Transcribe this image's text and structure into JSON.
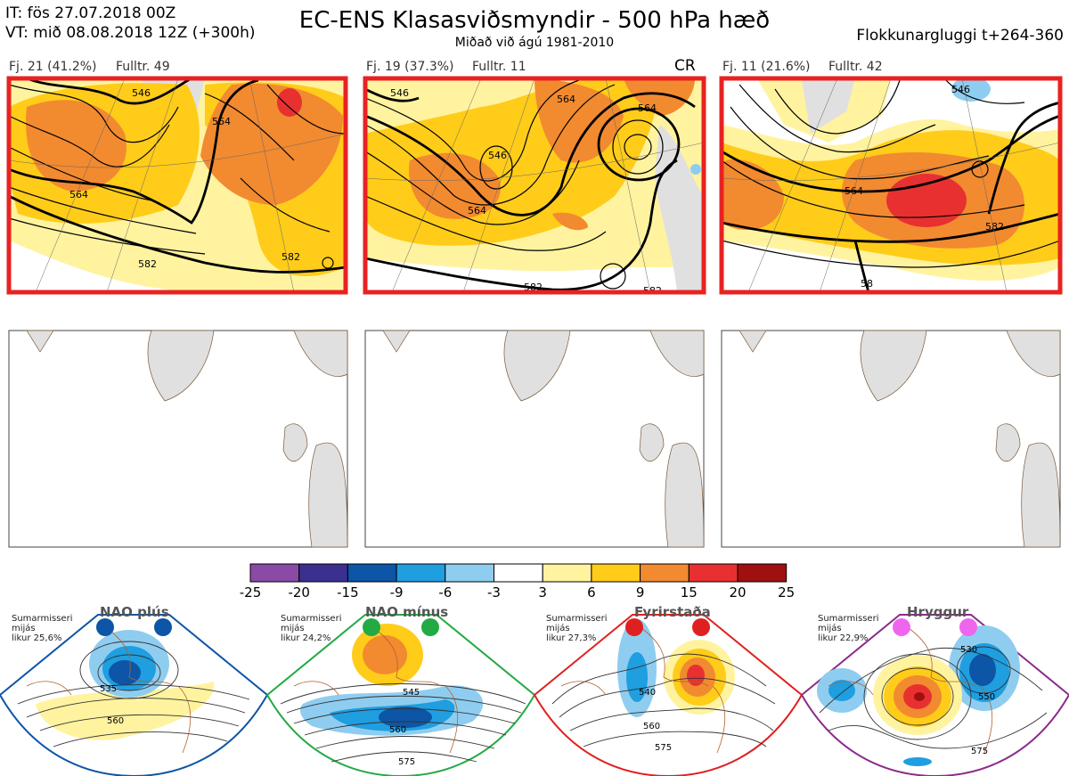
{
  "header": {
    "it_line": "IT: fös 27.07.2018 00Z",
    "vt_line": "VT: mið 08.08.2018 12Z  (+300h)",
    "title": "EC-ENS Klasasviðsmyndir - 500 hPa hæð",
    "subtitle": "Miðað við ágú 1981-2010",
    "window": "Flokkunargluggi t+264-360"
  },
  "panels": [
    {
      "label": "Fj. 21 (41.2%)",
      "member": "Fulltr. 49",
      "tag": "",
      "contours": [
        "546",
        "564",
        "564",
        "582",
        "582"
      ]
    },
    {
      "label": "Fj. 19 (37.3%)",
      "member": "Fulltr. 11",
      "tag": "CR",
      "contours": [
        "546",
        "564",
        "564",
        "546",
        "564",
        "582",
        "582"
      ]
    },
    {
      "label": "Fj. 11 (21.6%)",
      "member": "Fulltr. 42",
      "tag": "",
      "contours": [
        "546",
        "564",
        "582",
        "58"
      ]
    }
  ],
  "colorbar": {
    "ticks": [
      "-25",
      "-20",
      "-15",
      "-9",
      "-6",
      "-3",
      "3",
      "6",
      "9",
      "15",
      "20",
      "25"
    ],
    "colors": [
      "#8b4aa6",
      "#3b2f8f",
      "#0d55a6",
      "#1f9ee0",
      "#8fcdf0",
      "#ffffff",
      "#fff3a0",
      "#ffcc1a",
      "#f28a30",
      "#e83030",
      "#a01010"
    ]
  },
  "regimes": [
    {
      "name": "NAO plús",
      "info": [
        "Sumarmisseri",
        "mijás",
        "likur 25,6%"
      ],
      "color": "#0d55a6",
      "contours": [
        "535",
        "560"
      ]
    },
    {
      "name": "NAO mínus",
      "info": [
        "Sumarmisseri",
        "mijás",
        "likur 24,2%"
      ],
      "color": "#22aa44",
      "contours": [
        "545",
        "560",
        "575"
      ]
    },
    {
      "name": "Fyrirstaða",
      "info": [
        "Sumarmisseri",
        "mijás",
        "likur 27,3%"
      ],
      "color": "#e02020",
      "contours": [
        "540",
        "560",
        "575"
      ]
    },
    {
      "name": "Hryggur",
      "info": [
        "Sumarmisseri",
        "mijás",
        "likur 22,9%"
      ],
      "color": "#ee66ee",
      "contours": [
        "530",
        "550",
        "575"
      ]
    }
  ]
}
